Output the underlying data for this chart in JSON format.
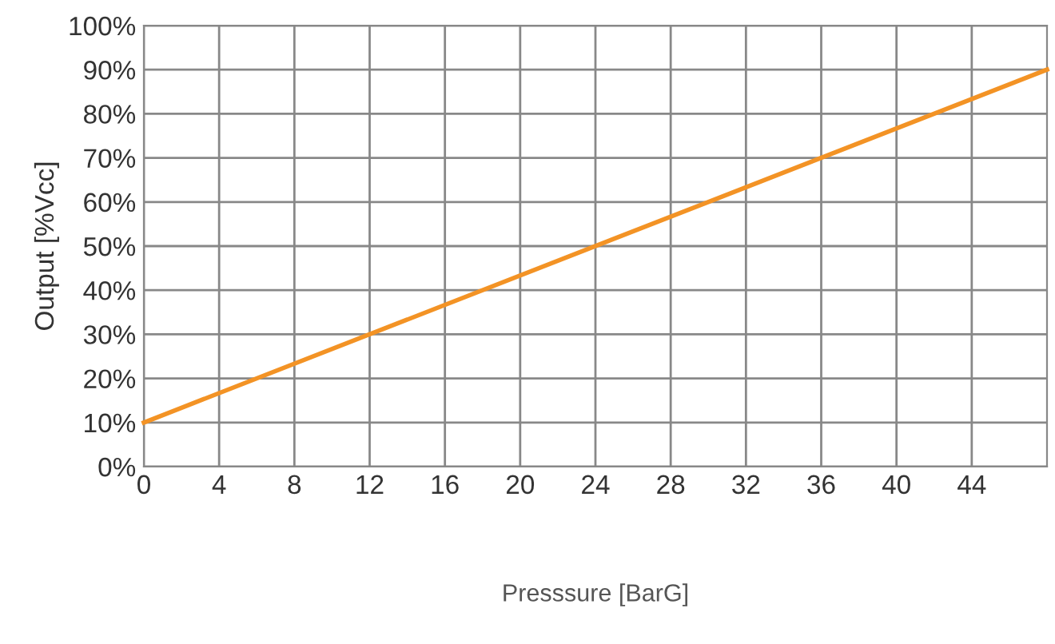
{
  "chart_data": {
    "type": "line",
    "xlabel": "Presssure [BarG]",
    "ylabel": "Output [%Vcc]",
    "x": [
      0,
      48
    ],
    "series": [
      {
        "color": "#f39325",
        "values": [
          10,
          90
        ]
      }
    ],
    "xlim": [
      0,
      48
    ],
    "xticks": [
      0,
      4,
      8,
      12,
      16,
      20,
      24,
      28,
      32,
      36,
      40,
      44
    ],
    "ylim": [
      0,
      100
    ],
    "yticks": [
      {
        "value": 0,
        "label": "0%"
      },
      {
        "value": 10,
        "label": "10%"
      },
      {
        "value": 20,
        "label": "20%"
      },
      {
        "value": 30,
        "label": "30%"
      },
      {
        "value": 40,
        "label": "40%"
      },
      {
        "value": 50,
        "label": "50%"
      },
      {
        "value": 60,
        "label": "60%"
      },
      {
        "value": 70,
        "label": "70%"
      },
      {
        "value": 80,
        "label": "80%"
      },
      {
        "value": 90,
        "label": "90%"
      },
      {
        "value": 100,
        "label": "100%"
      }
    ],
    "grid": true,
    "marker": "none",
    "line_style": "solid",
    "legend": false
  }
}
